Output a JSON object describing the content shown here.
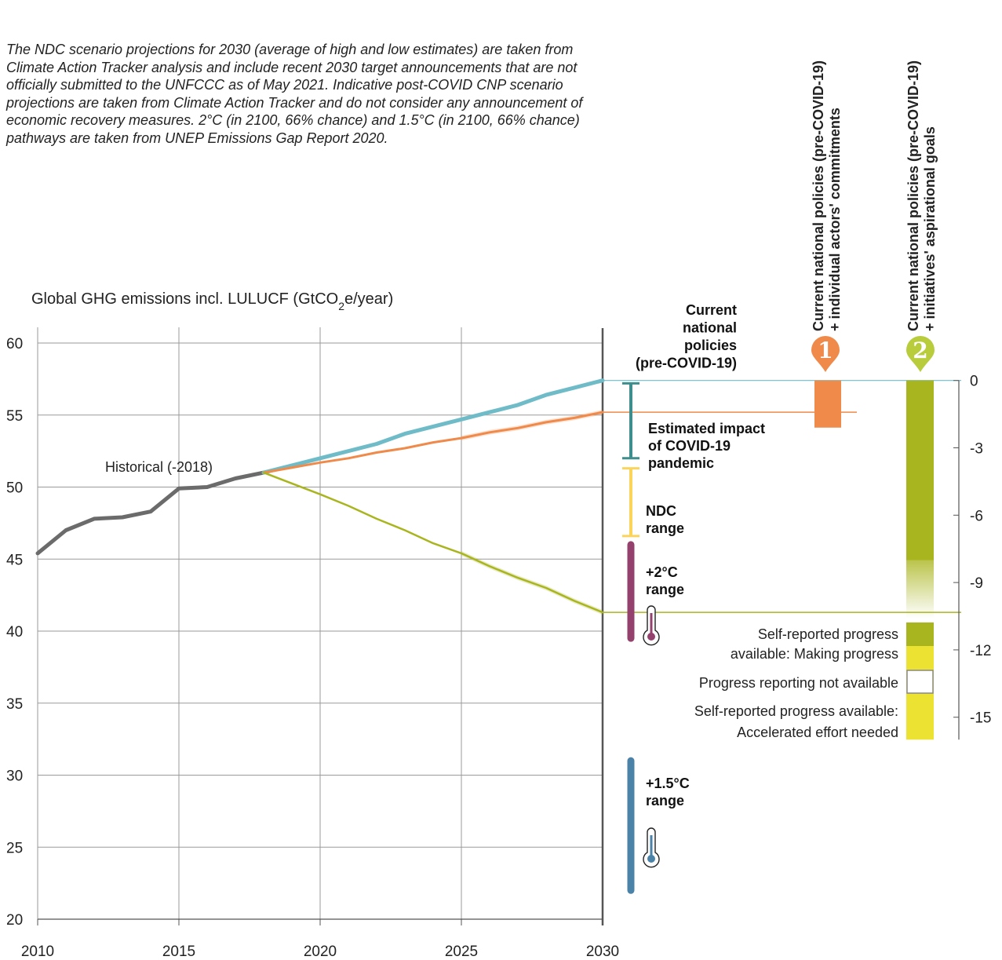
{
  "note": "The NDC scenario projections for 2030 (average of high and low estimates) are taken from Climate Action Tracker analysis and include recent 2030 target announcements that are not officially submitted to the UNFCCC as of May 2021. Indicative post-COVID CNP scenario projections are taken from Climate Action Tracker and do not consider any announcement of economic recovery measures. 2°C (in 2100, 66% chance) and 1.5°C (in 2100, 66% chance) pathways are taken from UNEP Emissions Gap Report 2020.",
  "colors": {
    "historical": "#6b6b6b",
    "current_policies": "#6fbcc8",
    "covid": "#ef8a4a",
    "ndc_path": "#a9b51e",
    "covid_bar": "#3e8e8e",
    "ndc_bar": "#fbd45b",
    "two_c": "#94416d",
    "one_five_c": "#4b82a8",
    "making_progress": "#a9b51e",
    "accelerated": "#ece232",
    "scenario1": "#ef8a4a",
    "scenario2": "#b8cc3c"
  },
  "chart_data": {
    "type": "line",
    "ylabel_main": "Global GHG emissions incl. LULUCF (GtCO",
    "ylabel_sub": "2",
    "ylabel_end": "e/year)",
    "xlim": [
      2010,
      2030
    ],
    "ylim": [
      20,
      60
    ],
    "x_ticks": [
      2010,
      2015,
      2020,
      2025,
      2030
    ],
    "y_ticks": [
      20,
      25,
      30,
      35,
      40,
      45,
      50,
      55,
      60
    ],
    "grid": true,
    "series": [
      {
        "name": "Historical (-2018)",
        "color_key": "historical",
        "points": [
          [
            2010,
            45.4
          ],
          [
            2011,
            47.0
          ],
          [
            2012,
            47.8
          ],
          [
            2013,
            47.9
          ],
          [
            2014,
            48.3
          ],
          [
            2015,
            49.9
          ],
          [
            2016,
            50.0
          ],
          [
            2017,
            50.6
          ],
          [
            2018,
            51.0
          ]
        ]
      },
      {
        "name": "",
        "color_key": "current_policies",
        "points": [
          [
            2018,
            51.0
          ],
          [
            2020,
            52.0
          ],
          [
            2022,
            53.0
          ],
          [
            2023,
            53.7
          ],
          [
            2024,
            54.2
          ],
          [
            2025,
            54.7
          ],
          [
            2026,
            55.2
          ],
          [
            2027,
            55.7
          ],
          [
            2028,
            56.4
          ],
          [
            2029,
            56.9
          ],
          [
            2030,
            57.4
          ]
        ]
      },
      {
        "name": "",
        "color_key": "covid",
        "points": [
          [
            2018,
            51.0
          ],
          [
            2020,
            51.7
          ],
          [
            2021,
            52.0
          ],
          [
            2022,
            52.4
          ],
          [
            2023,
            52.7
          ],
          [
            2024,
            53.1
          ],
          [
            2025,
            53.4
          ],
          [
            2026,
            53.8
          ],
          [
            2027,
            54.1
          ],
          [
            2028,
            54.5
          ],
          [
            2029,
            54.8
          ],
          [
            2030,
            55.2
          ]
        ]
      },
      {
        "name": "",
        "color_key": "ndc_path",
        "points": [
          [
            2018,
            51.0
          ],
          [
            2020,
            49.5
          ],
          [
            2021,
            48.7
          ],
          [
            2022,
            47.8
          ],
          [
            2023,
            47.0
          ],
          [
            2024,
            46.1
          ],
          [
            2025,
            45.4
          ],
          [
            2026,
            44.5
          ],
          [
            2027,
            43.7
          ],
          [
            2028,
            43.0
          ],
          [
            2029,
            42.1
          ],
          [
            2030,
            41.3
          ]
        ]
      }
    ],
    "ranges": [
      {
        "key": "covid",
        "label": [
          "Estimated impact",
          "of COVID-19",
          "pandemic"
        ],
        "y": [
          52.0,
          57.2
        ]
      },
      {
        "key": "ndc",
        "label": [
          "NDC",
          "range"
        ],
        "y": [
          46.6,
          51.3
        ]
      },
      {
        "key": "two_c",
        "label": [
          "+2°C",
          "range"
        ],
        "y": [
          39.5,
          46.0
        ]
      },
      {
        "key": "one_five_c",
        "label": [
          "+1.5°C",
          "range"
        ],
        "y": [
          22.0,
          31.0
        ]
      }
    ],
    "current_policies_label": [
      "Current",
      "national",
      "policies",
      "(pre-COVID-19)"
    ],
    "historical_label": "Historical (-2018)",
    "secondary_axis": {
      "ticks": [
        0,
        -3,
        -6,
        -9,
        -12,
        -15
      ],
      "scenario1": {
        "number": "1",
        "label": [
          "Current national policies (pre-COVID-19)",
          "+ individual actors' commitments"
        ],
        "value": -2.1
      },
      "scenario2": {
        "number": "2",
        "label": [
          "Current national policies (pre-COVID-19)",
          "+ initiatives' aspirational goals"
        ],
        "making_progress": [
          0,
          -8
        ],
        "not_available": [
          -8,
          -10.8
        ],
        "accelerated": [
          -10.8,
          -16
        ]
      }
    },
    "legend": [
      {
        "key": "making_progress",
        "lines": [
          "Self-reported progress",
          "available: Making progress"
        ]
      },
      {
        "key": "not_available",
        "lines": [
          "Progress reporting not available"
        ]
      },
      {
        "key": "accelerated",
        "lines": [
          "Self-reported progress available:",
          "Accelerated effort needed"
        ]
      }
    ]
  }
}
